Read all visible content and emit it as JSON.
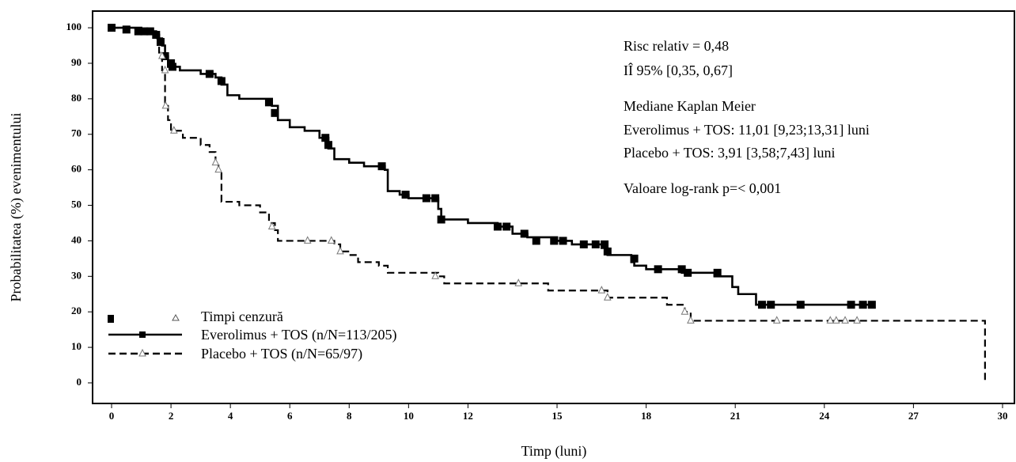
{
  "chart_data": {
    "type": "step",
    "xlabel": "Timp (luni)",
    "ylabel": "Probabilitatea (%) evenimentului",
    "xlim": [
      -0.64,
      30.4
    ],
    "ylim": [
      -5.8,
      104.7
    ],
    "xticks": [
      0,
      2,
      4,
      6,
      8,
      10,
      12,
      15,
      18,
      21,
      24,
      27,
      30
    ],
    "yticks": [
      0,
      10,
      20,
      30,
      40,
      50,
      60,
      70,
      80,
      90,
      100
    ],
    "censor_label": "Timpi cenzură",
    "annotations": [
      "Risc relativ = 0,48",
      "IÎ 95% [0,35, 0,67]",
      "Mediane Kaplan Meier",
      "Everolimus + TOS: 11,01 [9,23;13,31] luni",
      "Placebo + TOS: 3,91 [3,58;7,43] luni",
      "Valoare log-rank p=< 0,001"
    ],
    "series": [
      {
        "name": "Everolimus + TOS (n/N=113/205)",
        "color": "#000000",
        "dash": "solid",
        "marker": "square",
        "x": [
          0,
          1.0,
          1.5,
          1.6,
          1.7,
          1.8,
          1.9,
          2.3,
          3.0,
          3.5,
          3.7,
          3.9,
          4.3,
          5.4,
          5.6,
          6.0,
          6.5,
          7.0,
          7.3,
          7.5,
          8.0,
          8.5,
          9.2,
          9.3,
          9.7,
          10.0,
          11.0,
          11.1,
          12.0,
          13.0,
          13.5,
          14.0,
          15.0,
          15.5,
          16.5,
          16.7,
          17.5,
          17.6,
          18.0,
          19.2,
          20.3,
          20.9,
          21.1,
          21.7,
          25.7
        ],
        "values": [
          100,
          99,
          98,
          97,
          95,
          92,
          89,
          88,
          87,
          86,
          84,
          81,
          80,
          78,
          74,
          72,
          71,
          69,
          66,
          63,
          62,
          61,
          60,
          54,
          53,
          52,
          49,
          46,
          45,
          44,
          42,
          41,
          40,
          39,
          38,
          36,
          34,
          33,
          32,
          31,
          30,
          27,
          25,
          22,
          22
        ],
        "censor_x": [
          0,
          0.5,
          0.9,
          1.1,
          1.3,
          1.5,
          1.65,
          1.8,
          2.0,
          2.05,
          3.3,
          3.7,
          5.3,
          5.5,
          7.2,
          7.3,
          9.1,
          9.9,
          10.6,
          10.9,
          11.1,
          13.0,
          13.3,
          13.9,
          14.3,
          14.9,
          15.2,
          15.9,
          16.3,
          16.6,
          16.7,
          17.6,
          18.4,
          19.2,
          19.4,
          20.4,
          21.9,
          22.2,
          23.2,
          24.9,
          25.3,
          25.6
        ],
        "censor_values": [
          100,
          99.5,
          99,
          99,
          99,
          98,
          96,
          92,
          90,
          89,
          87,
          85,
          79,
          76,
          69,
          67,
          61,
          53,
          52,
          52,
          46,
          44,
          44,
          42,
          40,
          40,
          40,
          39,
          39,
          39,
          37,
          35,
          32,
          32,
          31,
          31,
          22,
          22,
          22,
          22,
          22,
          22
        ]
      },
      {
        "name": "Placebo + TOS (n/N=65/97)",
        "color": "#000000",
        "dash": "dashed",
        "marker": "triangle",
        "x": [
          0,
          1.0,
          1.5,
          1.6,
          1.7,
          1.8,
          1.9,
          2.0,
          2.4,
          3.0,
          3.3,
          3.5,
          3.6,
          3.7,
          4.3,
          5.0,
          5.3,
          5.5,
          5.6,
          7.5,
          7.7,
          8.0,
          8.3,
          9.0,
          9.3,
          11.0,
          11.2,
          14.7,
          16.7,
          18.7,
          19.3,
          19.5,
          29.4,
          29.41
        ],
        "values": [
          100,
          99,
          97,
          93,
          88,
          78,
          74,
          71,
          69,
          67,
          65,
          62,
          59,
          51,
          50,
          48,
          45,
          43,
          40,
          39,
          37,
          36,
          34,
          33,
          31,
          30,
          28,
          26,
          24,
          22,
          20,
          17.5,
          17.5,
          0
        ],
        "censor_x": [
          1.7,
          1.8,
          1.82,
          2.1,
          3.5,
          3.6,
          5.4,
          6.6,
          7.4,
          7.7,
          10.9,
          13.7,
          16.5,
          16.7,
          19.3,
          19.5,
          22.4,
          24.2,
          24.4,
          24.7,
          25.1
        ],
        "censor_values": [
          92,
          88,
          78,
          71,
          62,
          60,
          44,
          40,
          40,
          37,
          30,
          28,
          26,
          24,
          20,
          17.5,
          17.5,
          17.5,
          17.5,
          17.5,
          17.5
        ]
      }
    ]
  }
}
